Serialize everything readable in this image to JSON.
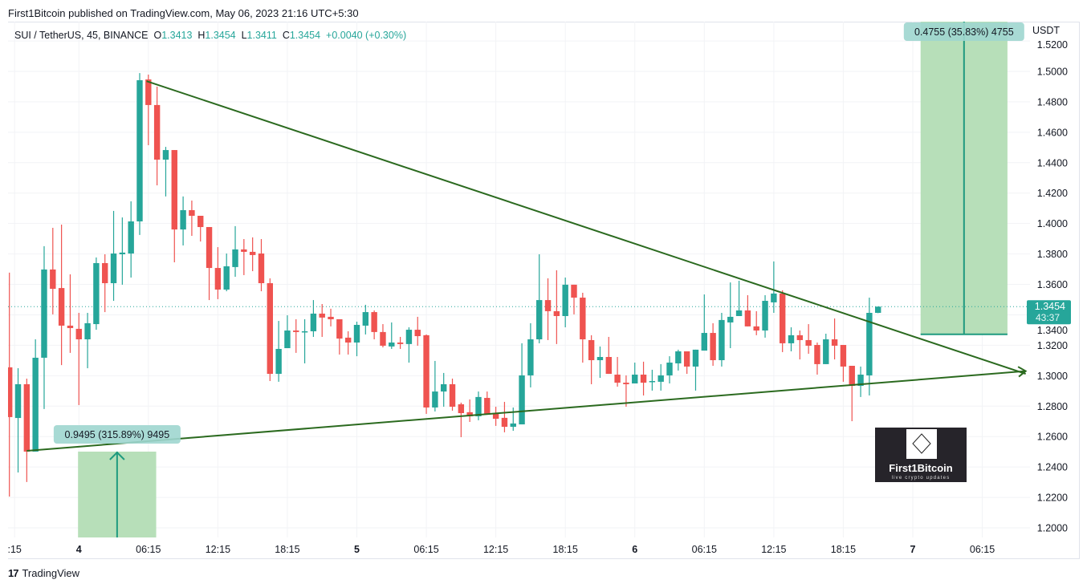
{
  "published": "First1Bitcoin published on TradingView.com, May 06, 2023 21:16 UTC+5:30",
  "legend": {
    "symbol": "SUI / TetherUS, 45, BINANCE",
    "o_label": "O",
    "o": "1.3413",
    "h_label": "H",
    "h": "1.3454",
    "l_label": "L",
    "l": "1.3411",
    "c_label": "C",
    "c": "1.3454",
    "change": "+0.0040 (+0.30%)"
  },
  "footer": {
    "logo_mark": "17",
    "brand": "TradingView"
  },
  "watermark": {
    "title": "First1Bitcoin",
    "subtitle": "live crypto updates"
  },
  "colors": {
    "up": "#26a69a",
    "down": "#ef5350",
    "trendline": "#2b6a1f",
    "range_fill": "#b7dfb9",
    "range_label": "#9fd6cf"
  },
  "chart_data": {
    "type": "candlestick",
    "title": "SUI / TetherUS, 45, BINANCE",
    "currency_label": "USDT",
    "ylim": [
      1.19,
      1.53
    ],
    "y_ticks": [
      "1.5200",
      "1.5000",
      "1.4800",
      "1.4600",
      "1.4400",
      "1.4200",
      "1.4000",
      "1.3800",
      "1.3600",
      "1.3400",
      "1.3200",
      "1.3000",
      "1.2800",
      "1.2600",
      "1.2400",
      "1.2200",
      "1.2000"
    ],
    "x_ticks": [
      {
        "label": ":15",
        "bar": 0.6,
        "bold": false
      },
      {
        "label": "4",
        "bar": 8,
        "bold": true
      },
      {
        "label": "06:15",
        "bar": 16,
        "bold": false
      },
      {
        "label": "12:15",
        "bar": 24,
        "bold": false
      },
      {
        "label": "18:15",
        "bar": 32,
        "bold": false
      },
      {
        "label": "5",
        "bar": 40,
        "bold": true
      },
      {
        "label": "06:15",
        "bar": 48,
        "bold": false
      },
      {
        "label": "12:15",
        "bar": 56,
        "bold": false
      },
      {
        "label": "18:15",
        "bar": 64,
        "bold": false
      },
      {
        "label": "6",
        "bar": 72,
        "bold": true
      },
      {
        "label": "06:15",
        "bar": 80,
        "bold": false
      },
      {
        "label": "12:15",
        "bar": 88,
        "bold": false
      },
      {
        "label": "18:15",
        "bar": 96,
        "bold": false
      },
      {
        "label": "7",
        "bar": 104,
        "bold": true
      },
      {
        "label": "06:15",
        "bar": 112,
        "bold": false
      }
    ],
    "candles_ohlc": [
      [
        1.3055,
        1.3677,
        1.2206,
        1.2728
      ],
      [
        1.2722,
        1.3049,
        1.2364,
        1.2944
      ],
      [
        1.2944,
        1.2981,
        1.2301,
        1.2501
      ],
      [
        1.2501,
        1.3239,
        1.2501,
        1.3118
      ],
      [
        1.3118,
        1.3851,
        1.2781,
        1.3698
      ],
      [
        1.3698,
        1.3972,
        1.3403,
        1.3571
      ],
      [
        1.3576,
        1.3993,
        1.307,
        1.3329
      ],
      [
        1.3329,
        1.3666,
        1.315,
        1.3313
      ],
      [
        1.3308,
        1.3413,
        1.2807,
        1.3239
      ],
      [
        1.3239,
        1.3413,
        1.3049,
        1.3345
      ],
      [
        1.3339,
        1.3777,
        1.3302,
        1.374
      ],
      [
        1.374,
        1.3798,
        1.3418,
        1.3608
      ],
      [
        1.3608,
        1.4083,
        1.3492,
        1.3803
      ],
      [
        1.3798,
        1.404,
        1.3598,
        1.3809
      ],
      [
        1.3803,
        1.4146,
        1.3645,
        1.4014
      ],
      [
        1.4014,
        1.4989,
        1.3925,
        1.4942
      ],
      [
        1.4947,
        1.4979,
        1.4515,
        1.4779
      ],
      [
        1.4779,
        1.49,
        1.4251,
        1.442
      ],
      [
        1.442,
        1.4504,
        1.4178,
        1.4483
      ],
      [
        1.4483,
        1.4483,
        1.3745,
        1.3961
      ],
      [
        1.3961,
        1.4178,
        1.3856,
        1.4088
      ],
      [
        1.4088,
        1.4151,
        1.3919,
        1.4051
      ],
      [
        1.4051,
        1.4051,
        1.3882,
        1.3977
      ],
      [
        1.3977,
        1.3977,
        1.3497,
        1.3708
      ],
      [
        1.3708,
        1.3845,
        1.3503,
        1.3566
      ],
      [
        1.3566,
        1.3803,
        1.3555,
        1.3719
      ],
      [
        1.3714,
        1.3983,
        1.365,
        1.383
      ],
      [
        1.383,
        1.3898,
        1.3661,
        1.3814
      ],
      [
        1.3814,
        1.3909,
        1.3687,
        1.3793
      ],
      [
        1.3803,
        1.3898,
        1.3555,
        1.3608
      ],
      [
        1.3608,
        1.364,
        1.2965,
        1.3012
      ],
      [
        1.3012,
        1.336,
        1.296,
        1.3176
      ],
      [
        1.3181,
        1.3397,
        1.3181,
        1.3297
      ],
      [
        1.3297,
        1.3371,
        1.315,
        1.3287
      ],
      [
        1.3287,
        1.3371,
        1.3081,
        1.3292
      ],
      [
        1.3292,
        1.3497,
        1.3255,
        1.3408
      ],
      [
        1.3408,
        1.3471,
        1.3255,
        1.3382
      ],
      [
        1.3387,
        1.344,
        1.3324,
        1.3371
      ],
      [
        1.3371,
        1.3371,
        1.3139,
        1.3244
      ],
      [
        1.325,
        1.3292,
        1.3139,
        1.3218
      ],
      [
        1.3218,
        1.3355,
        1.3128,
        1.3334
      ],
      [
        1.3329,
        1.3466,
        1.3271,
        1.3418
      ],
      [
        1.3418,
        1.3429,
        1.3239,
        1.3287
      ],
      [
        1.3287,
        1.3339,
        1.3186,
        1.3197
      ],
      [
        1.3192,
        1.335,
        1.3176,
        1.3218
      ],
      [
        1.3218,
        1.3255,
        1.3176,
        1.3208
      ],
      [
        1.3208,
        1.3318,
        1.3086,
        1.3302
      ],
      [
        1.3302,
        1.3387,
        1.3197,
        1.326
      ],
      [
        1.3266,
        1.3271,
        1.2749,
        1.2791
      ],
      [
        1.2791,
        1.3097,
        1.2765,
        1.2896
      ],
      [
        1.2896,
        1.3018,
        1.2796,
        1.2944
      ],
      [
        1.2944,
        1.2981,
        1.277,
        1.2796
      ],
      [
        1.2812,
        1.2823,
        1.2596,
        1.2754
      ],
      [
        1.276,
        1.2844,
        1.2696,
        1.2733
      ],
      [
        1.2733,
        1.2896,
        1.2707,
        1.286
      ],
      [
        1.2854,
        1.2896,
        1.2744,
        1.2744
      ],
      [
        1.2749,
        1.2796,
        1.267,
        1.2717
      ],
      [
        1.2723,
        1.2828,
        1.2628,
        1.2664
      ],
      [
        1.2664,
        1.2791,
        1.2638,
        1.2686
      ],
      [
        1.268,
        1.3213,
        1.268,
        1.3002
      ],
      [
        1.3002,
        1.3345,
        1.2923,
        1.3239
      ],
      [
        1.3239,
        1.3798,
        1.3213,
        1.3497
      ],
      [
        1.3497,
        1.364,
        1.3234,
        1.3424
      ],
      [
        1.3424,
        1.3693,
        1.3208,
        1.3392
      ],
      [
        1.3392,
        1.3645,
        1.3318,
        1.3598
      ],
      [
        1.3598,
        1.3598,
        1.3403,
        1.3513
      ],
      [
        1.3513,
        1.3545,
        1.3086,
        1.3239
      ],
      [
        1.3234,
        1.3266,
        1.2944,
        1.3102
      ],
      [
        1.3102,
        1.3192,
        1.2986,
        1.3123
      ],
      [
        1.3123,
        1.3255,
        1.3012,
        1.3012
      ],
      [
        1.3007,
        1.3123,
        1.2928,
        1.2954
      ],
      [
        1.2954,
        1.3002,
        1.2796,
        1.2944
      ],
      [
        1.2949,
        1.3086,
        1.2949,
        1.3007
      ],
      [
        1.3007,
        1.3092,
        1.287,
        1.2954
      ],
      [
        1.296,
        1.3039,
        1.2902,
        1.2965
      ],
      [
        1.296,
        1.3076,
        1.2902,
        1.3002
      ],
      [
        1.3002,
        1.3128,
        1.2949,
        1.3086
      ],
      [
        1.3081,
        1.3171,
        1.3034,
        1.316
      ],
      [
        1.316,
        1.316,
        1.3012,
        1.306
      ],
      [
        1.306,
        1.3171,
        1.2902,
        1.3171
      ],
      [
        1.3165,
        1.3534,
        1.3165,
        1.3281
      ],
      [
        1.3281,
        1.3345,
        1.3065,
        1.3102
      ],
      [
        1.3102,
        1.3413,
        1.306,
        1.3366
      ],
      [
        1.335,
        1.3613,
        1.3181,
        1.3387
      ],
      [
        1.3392,
        1.3624,
        1.3392,
        1.3429
      ],
      [
        1.3429,
        1.3529,
        1.3324,
        1.3324
      ],
      [
        1.3324,
        1.3424,
        1.3266,
        1.3297
      ],
      [
        1.3297,
        1.3529,
        1.325,
        1.3492
      ],
      [
        1.3482,
        1.3751,
        1.3413,
        1.354
      ],
      [
        1.354,
        1.3561,
        1.3155,
        1.3213
      ],
      [
        1.3213,
        1.3318,
        1.316,
        1.3266
      ],
      [
        1.3266,
        1.3297,
        1.3107,
        1.3234
      ],
      [
        1.3234,
        1.3339,
        1.3144,
        1.3197
      ],
      [
        1.3202,
        1.3218,
        1.3007,
        1.3076
      ],
      [
        1.3076,
        1.3276,
        1.3076,
        1.3239
      ],
      [
        1.3239,
        1.3376,
        1.3107,
        1.3197
      ],
      [
        1.3202,
        1.3202,
        1.296,
        1.306
      ],
      [
        1.3065,
        1.3065,
        1.2701,
        1.2933
      ],
      [
        1.2933,
        1.306,
        1.286,
        1.3007
      ],
      [
        1.3002,
        1.3513,
        1.287,
        1.3413
      ],
      [
        1.3413,
        1.3454,
        1.3411,
        1.3454
      ]
    ],
    "trendlines": [
      {
        "from": [
          15.8,
          1.4936
        ],
        "to": [
          117.0,
          1.3012
        ],
        "arrow": false
      },
      {
        "from": [
          2.0,
          1.2506
        ],
        "to": [
          117.0,
          1.303
        ],
        "arrow": true
      }
    ],
    "price_ranges": [
      {
        "bar_from": 7.9,
        "bar_to": 16.9,
        "price_from": 0.3006,
        "price_to": 1.2501,
        "label": "0.9495 (315.89%) 9495"
      },
      {
        "bar_from": 104.9,
        "bar_to": 114.9,
        "price_from": 1.3272,
        "price_to": 1.8027,
        "label": "0.4755 (35.83%) 4755"
      }
    ],
    "last_price": {
      "value": 1.3454,
      "label": "1.3454",
      "countdown": "43:37"
    }
  }
}
